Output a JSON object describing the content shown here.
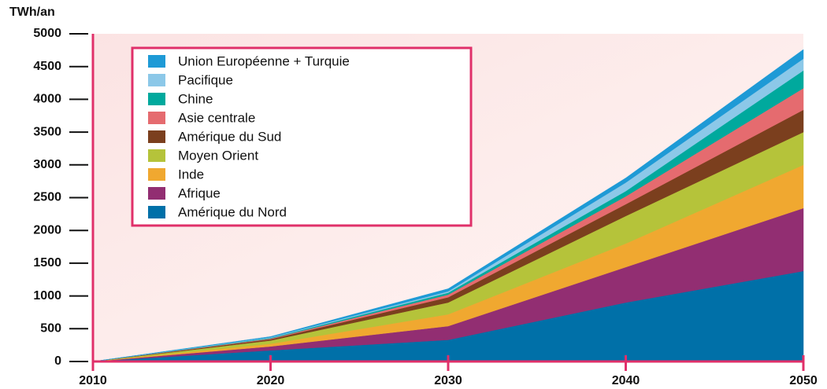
{
  "chart_data": {
    "type": "stacked-area",
    "y_label": "TWh/an",
    "x": [
      2010,
      2020,
      2030,
      2040,
      2050
    ],
    "xlim": [
      2010,
      2050
    ],
    "xticks": [
      2010,
      2020,
      2030,
      2040,
      2050
    ],
    "ylim": [
      0,
      5000
    ],
    "yticks": [
      0,
      500,
      1000,
      1500,
      2000,
      2500,
      3000,
      3500,
      4000,
      4500,
      5000
    ],
    "series": [
      {
        "name": "Amérique du Nord",
        "color": "#0070a8",
        "values": [
          0,
          170,
          330,
          900,
          1380
        ]
      },
      {
        "name": "Afrique",
        "color": "#922e72",
        "values": [
          0,
          60,
          210,
          540,
          960
        ]
      },
      {
        "name": "Inde",
        "color": "#f0a830",
        "values": [
          0,
          40,
          180,
          360,
          660
        ]
      },
      {
        "name": "Moyen Orient",
        "color": "#b5c33a",
        "values": [
          0,
          50,
          180,
          420,
          500
        ]
      },
      {
        "name": "Amérique du Sud",
        "color": "#7b3f1e",
        "values": [
          0,
          20,
          80,
          180,
          340
        ]
      },
      {
        "name": "Asie centrale",
        "color": "#e56b6f",
        "values": [
          0,
          10,
          40,
          120,
          330
        ]
      },
      {
        "name": "Chine",
        "color": "#00a99d",
        "values": [
          0,
          10,
          30,
          80,
          270
        ]
      },
      {
        "name": "Pacifique",
        "color": "#8cc8e8",
        "values": [
          0,
          10,
          20,
          130,
          180
        ]
      },
      {
        "name": "Union Européenne + Turquie",
        "color": "#1e9ad6",
        "values": [
          0,
          10,
          40,
          70,
          140
        ]
      }
    ]
  }
}
